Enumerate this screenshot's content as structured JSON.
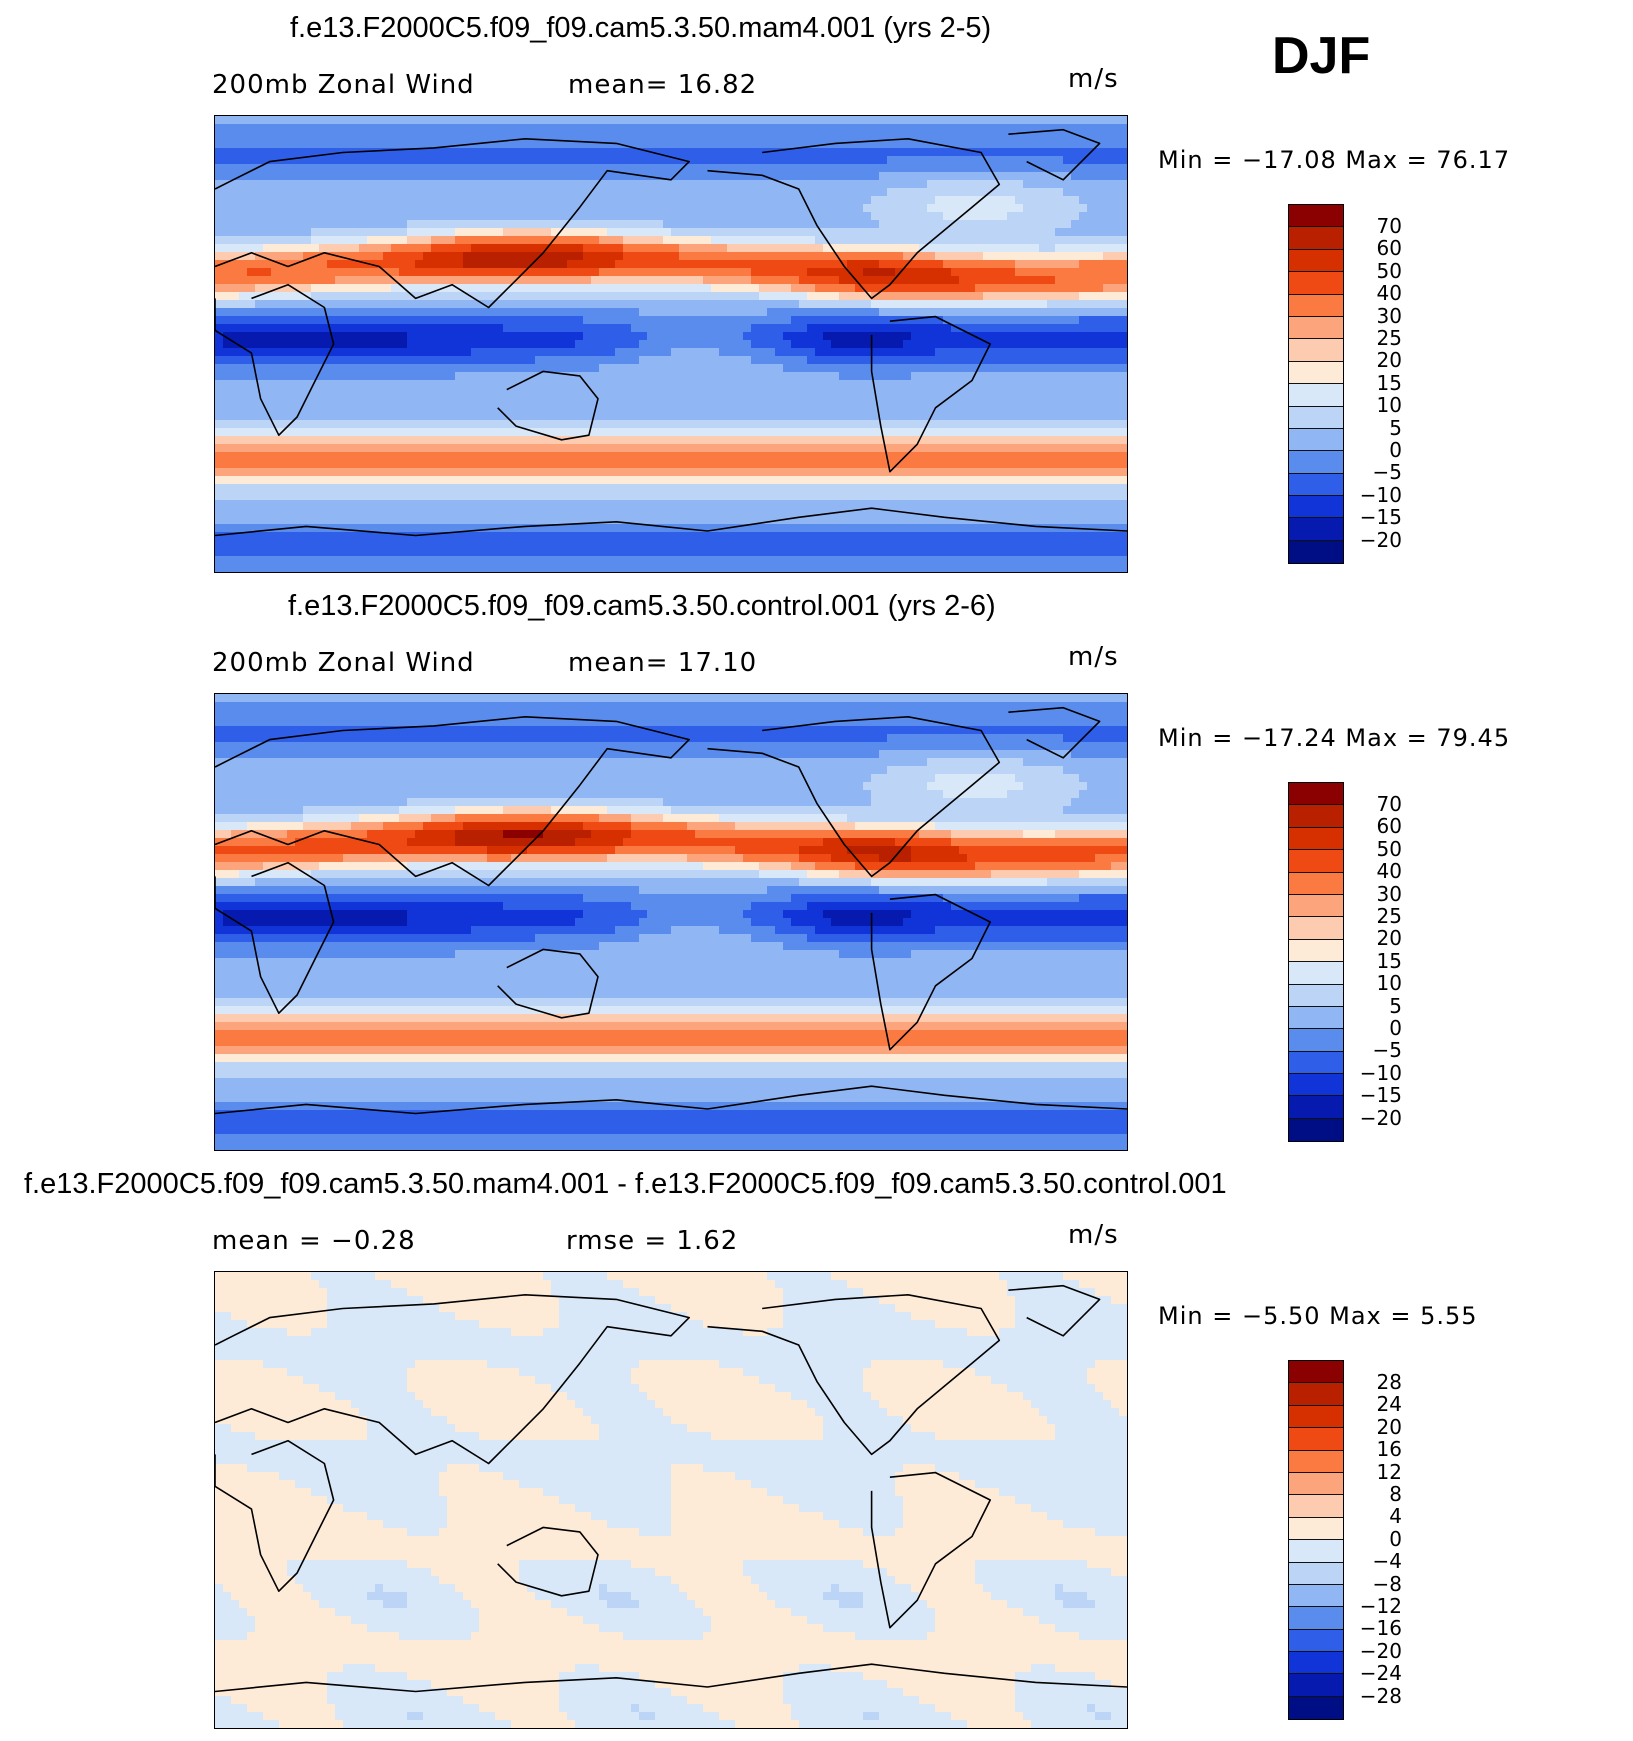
{
  "header": {
    "season": "DJF"
  },
  "panels": [
    {
      "title": "f.e13.F2000C5.f09_f09.cam5.3.50.mam4.001 (yrs 2-5)",
      "left_label": "200mb Zonal Wind",
      "mid_label": "mean=   16.82",
      "units": "m/s",
      "minmax": "Min  =  −17.08  Max  =    76.17",
      "colorbar_labels": [
        "70",
        "60",
        "50",
        "40",
        "30",
        "25",
        "20",
        "15",
        "10",
        "5",
        "0",
        "−5",
        "−10",
        "−15",
        "−20"
      ],
      "field": "full"
    },
    {
      "title": "f.e13.F2000C5.f09_f09.cam5.3.50.control.001 (yrs 2-6)",
      "left_label": "200mb Zonal Wind",
      "mid_label": "mean=   17.10",
      "units": "m/s",
      "minmax": "Min  =  −17.24  Max  =    79.45",
      "colorbar_labels": [
        "70",
        "60",
        "50",
        "40",
        "30",
        "25",
        "20",
        "15",
        "10",
        "5",
        "0",
        "−5",
        "−10",
        "−15",
        "−20"
      ],
      "field": "full"
    },
    {
      "title": "f.e13.F2000C5.f09_f09.cam5.3.50.mam4.001 - f.e13.F2000C5.f09_f09.cam5.3.50.control.001",
      "left_label": "mean =    −0.28",
      "mid_label": "rmse =     1.62",
      "units": "m/s",
      "minmax": "Min  =    −5.50  Max  =     5.55",
      "colorbar_labels": [
        "28",
        "24",
        "20",
        "16",
        "12",
        "8",
        "4",
        "0",
        "−4",
        "−8",
        "−12",
        "−16",
        "−20",
        "−24",
        "−28"
      ],
      "field": "diff"
    }
  ],
  "colors": {
    "colorbar": [
      "#8b0000",
      "#b82000",
      "#d63000",
      "#f04a14",
      "#fa7a42",
      "#fca47c",
      "#fdcbb0",
      "#fdebd8",
      "#d8e8f8",
      "#bcd4f6",
      "#90b6f4",
      "#5a8cee",
      "#2f5ee8",
      "#1034d8",
      "#061ab0",
      "#000e85"
    ],
    "coast": "#000000"
  }
}
